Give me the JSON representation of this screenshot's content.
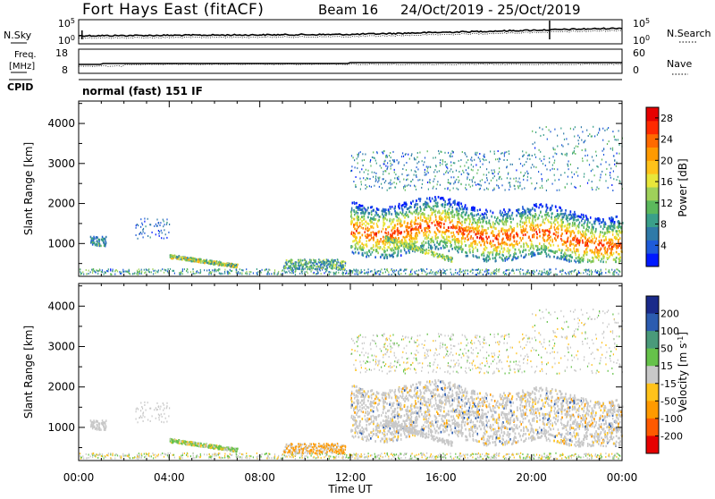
{
  "header": {
    "station": "Fort Hays East (fitACF)",
    "beam": "Beam 16",
    "date_range": "24/Oct/2019 - 25/Oct/2019"
  },
  "top_panels": {
    "nsky_label": "N.Sky",
    "nsky_ticks": [
      "10^5",
      "10^0"
    ],
    "nsearch_label": "N.Search",
    "nsearch_ticks": [
      "10^5",
      "10^0"
    ],
    "freq_label_1": "Freq.",
    "freq_label_2": "[MHz]",
    "freq_ticks": [
      "18",
      "8"
    ],
    "nave_label": "Nave",
    "nave_ticks": [
      "60",
      "0"
    ],
    "cpid_label": "CPID",
    "cpid_text": "normal (fast) 151 IF"
  },
  "chart_data": [
    {
      "type": "heatmap",
      "name": "power",
      "xlabel": "Time UT",
      "ylabel": "Slant Range [km]",
      "x_ticks": [
        "00:00",
        "04:00",
        "08:00",
        "12:00",
        "16:00",
        "20:00",
        "00:00"
      ],
      "x_range_hours": [
        0,
        24
      ],
      "y_ticks": [
        1000,
        2000,
        3000,
        4000
      ],
      "y_range_km": [
        180,
        4560
      ],
      "colorbar": {
        "label": "Power [dB]",
        "ticks": [
          "4",
          "8",
          "12",
          "16",
          "20",
          "24",
          "28"
        ],
        "range": [
          0,
          30
        ],
        "colors": [
          "#0019ff",
          "#1e5bd9",
          "#2f7aa8",
          "#3a9f8a",
          "#5cb85c",
          "#9fd15a",
          "#e8e63a",
          "#ffc21a",
          "#ff9a00",
          "#ff6a00",
          "#ff2a00",
          "#e60000"
        ]
      }
    },
    {
      "type": "heatmap",
      "name": "velocity",
      "xlabel": "Time UT",
      "ylabel": "Slant Range [km]",
      "x_ticks": [
        "00:00",
        "04:00",
        "08:00",
        "12:00",
        "16:00",
        "20:00",
        "00:00"
      ],
      "x_range_hours": [
        0,
        24
      ],
      "y_ticks": [
        1000,
        2000,
        3000,
        4000
      ],
      "y_range_km": [
        180,
        4560
      ],
      "colorbar": {
        "label": "Velocity [m s^-1]",
        "ticks": [
          "200",
          "100",
          "50",
          "15",
          "-15",
          "-50",
          "-100",
          "-200"
        ],
        "colors": [
          "#1a2a8a",
          "#2c5cb0",
          "#4a9a7a",
          "#66c24a",
          "#c8c8c8",
          "#ffc21a",
          "#ff9a00",
          "#ff5a00",
          "#e60000"
        ]
      }
    }
  ]
}
